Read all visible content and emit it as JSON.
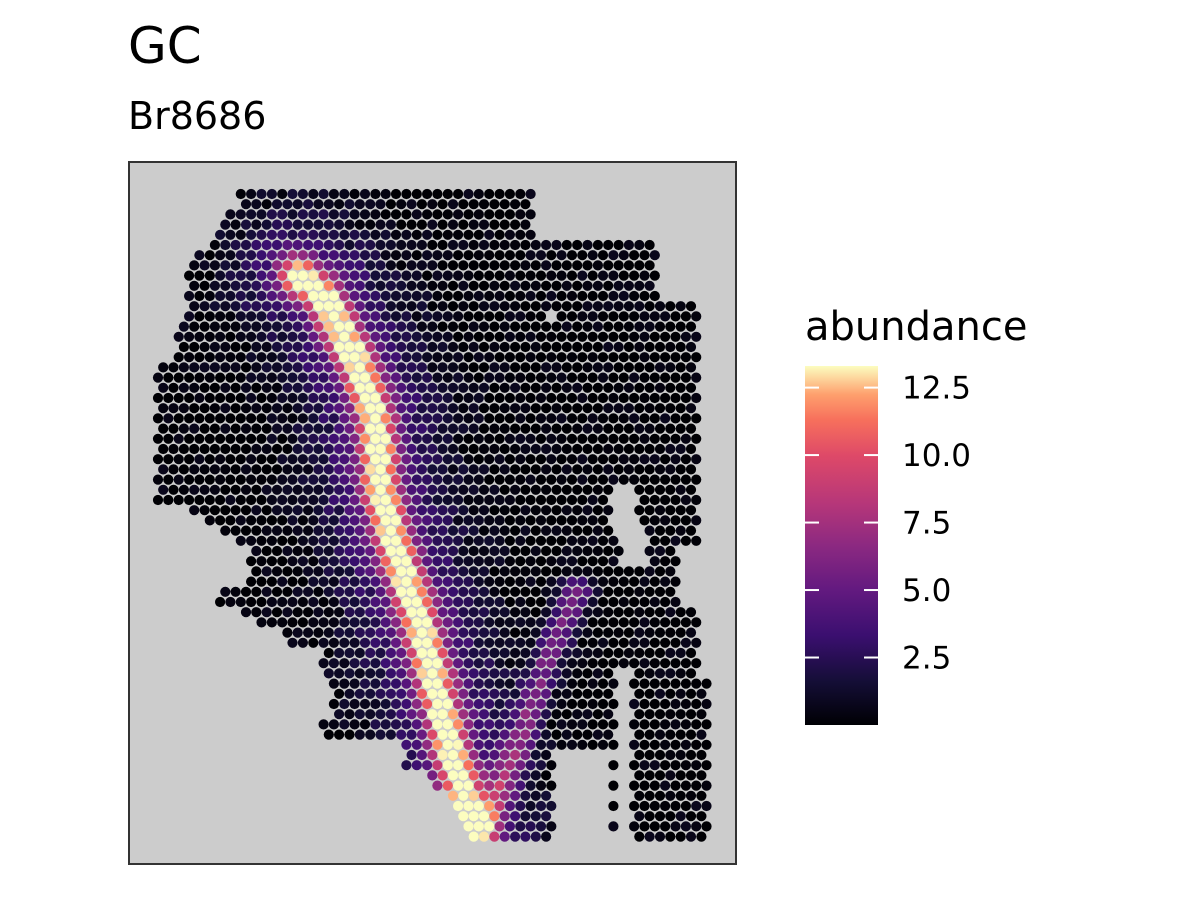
{
  "chart_data": {
    "type": "scatter",
    "title": "GC",
    "subtitle": "Br8686",
    "xlabel": "",
    "ylabel": "",
    "grid": false,
    "panel_background": "#CCCCCC",
    "point_color_scale": "magma",
    "legend": {
      "title": "abundance",
      "placement": "right",
      "min": 0,
      "max": 13.3,
      "ticks": [
        2.5,
        5.0,
        7.5,
        10.0,
        12.5
      ],
      "tick_labels": [
        "2.5",
        "5.0",
        "7.5",
        "10.0",
        "12.5"
      ]
    },
    "spots": {
      "description_of_values": "Visium spots, roughly hexagonal lattice; value = abundance",
      "lattice": {
        "cols": 55,
        "rows": 64,
        "x_range": [
          0,
          54
        ],
        "y_range": [
          0,
          63
        ]
      },
      "hotspot_curve": [
        [
          13.5,
          8
        ],
        [
          16,
          10
        ],
        [
          19,
          16
        ],
        [
          21,
          22
        ],
        [
          21.5,
          29
        ],
        [
          23,
          35
        ],
        [
          25,
          41
        ],
        [
          26.5,
          47
        ],
        [
          28,
          53
        ],
        [
          29.5,
          59
        ],
        [
          30.5,
          62
        ]
      ],
      "secondary_curve": [
        [
          31.5,
          62
        ],
        [
          34.5,
          55
        ],
        [
          37.5,
          46
        ],
        [
          40.5,
          39
        ]
      ]
    }
  }
}
